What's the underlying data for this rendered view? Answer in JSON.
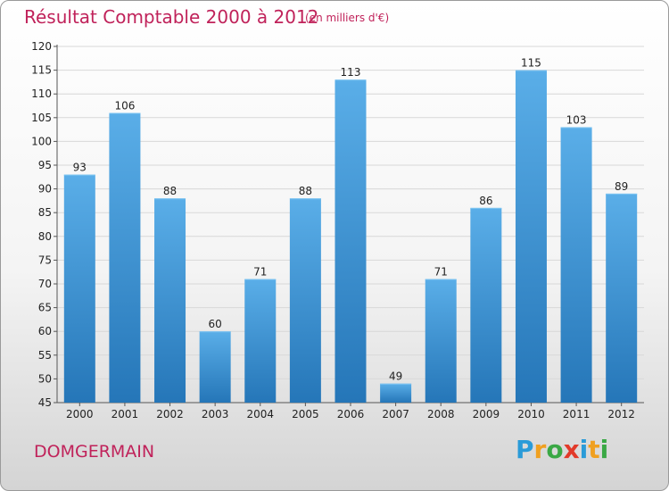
{
  "header": {
    "title": "Résultat Comptable 2000 à 2012",
    "subtitle": "(en milliers d'€)"
  },
  "footer": {
    "place": "DOMGERMAIN",
    "logo_text": "Proxiti",
    "logo_letters": [
      {
        "char": "P",
        "color": "#2a9bd8"
      },
      {
        "char": "r",
        "color": "#f0a020"
      },
      {
        "char": "o",
        "color": "#3aa845"
      },
      {
        "char": "x",
        "color": "#e23a2a"
      },
      {
        "char": "i",
        "color": "#2a9bd8"
      },
      {
        "char": "t",
        "color": "#f0a020"
      },
      {
        "char": "i",
        "color": "#3aa845"
      }
    ]
  },
  "colors": {
    "accent": "#c0225a",
    "bar_top": "#5aaee8",
    "bar_bottom": "#2576b8",
    "grid": "#d8d8d8"
  },
  "chart_data": {
    "type": "bar",
    "title": "Résultat Comptable 2000 à 2012",
    "subtitle": "(en milliers d'€)",
    "categories": [
      "2000",
      "2001",
      "2002",
      "2003",
      "2004",
      "2005",
      "2006",
      "2007",
      "2008",
      "2009",
      "2010",
      "2011",
      "2012"
    ],
    "values": [
      93,
      106,
      88,
      60,
      71,
      88,
      113,
      49,
      71,
      86,
      115,
      103,
      89
    ],
    "ylim": [
      45,
      120
    ],
    "yticks": [
      45,
      50,
      55,
      60,
      65,
      70,
      75,
      80,
      85,
      90,
      95,
      100,
      105,
      110,
      115,
      120
    ],
    "grid": true,
    "xlabel": "",
    "ylabel": ""
  }
}
